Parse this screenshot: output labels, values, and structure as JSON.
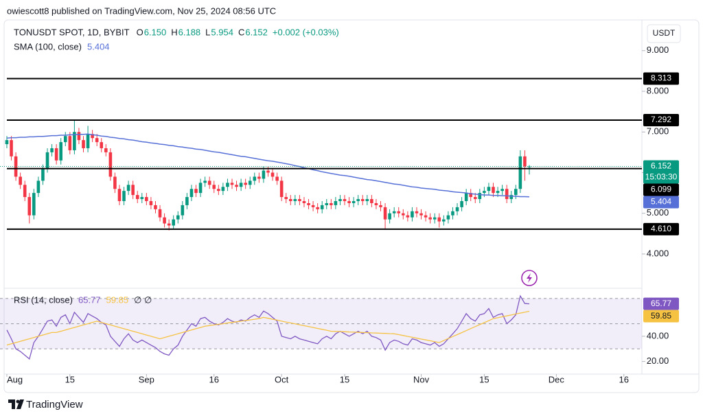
{
  "header": {
    "publisher": "owiescott8 published on TradingView.com, Nov 25, 2024 08:56 UTC"
  },
  "chart_data": [
    {
      "type": "candlestick",
      "title": "TONUSDT SPOT, 1D, BYBIT",
      "header_values": [
        {
          "key": "O",
          "label": "6.150"
        },
        {
          "key": "H",
          "label": "6.188"
        },
        {
          "key": "L",
          "label": "5.954"
        },
        {
          "key": "C",
          "label": "6.152"
        }
      ],
      "change": "+0.002 (+0.03%)",
      "currency": "USDT",
      "up_color": "#089981",
      "down_color": "#f23645",
      "xlim": [
        -1.52,
        141
      ],
      "ylim": [
        3.19,
        9.57
      ],
      "yticks": [
        {
          "value": 4,
          "label": "4.000"
        },
        {
          "value": 5,
          "label": "5.000"
        },
        {
          "value": 6,
          "label": "6.000"
        },
        {
          "value": 7,
          "label": "7.000"
        },
        {
          "value": 8,
          "label": "8.000"
        },
        {
          "value": 9,
          "label": "9.000"
        }
      ],
      "open": [
        6.7,
        6.8,
        6.4,
        5.9,
        5.7,
        5.4,
        4.95,
        5.5,
        5.8,
        6.1,
        6.5,
        6.6,
        6.3,
        6.75,
        6.9,
        6.55,
        7.0,
        6.8,
        6.6,
        6.95,
        6.85,
        6.75,
        6.6,
        6.5,
        5.9,
        5.6,
        5.3,
        5.55,
        5.7,
        5.45,
        5.35,
        5.4,
        5.3,
        5.2,
        5.1,
        4.9,
        4.75,
        4.7,
        4.85,
        4.95,
        5.2,
        5.4,
        5.6,
        5.5,
        5.75,
        5.8,
        5.7,
        5.6,
        5.55,
        5.65,
        5.75,
        5.7,
        5.65,
        5.75,
        5.7,
        5.8,
        5.9,
        5.85,
        6.05,
        6.0,
        5.9,
        5.8,
        5.4,
        5.35,
        5.3,
        5.35,
        5.3,
        5.25,
        5.2,
        5.15,
        5.1,
        5.2,
        5.25,
        5.2,
        5.3,
        5.35,
        5.3,
        5.25,
        5.3,
        5.35,
        5.3,
        5.35,
        5.25,
        5.2,
        5.15,
        4.85,
        5.0,
        5.05,
        5.0,
        4.95,
        4.9,
        5.05,
        5.0,
        4.95,
        4.9,
        4.85,
        4.9,
        4.8,
        4.85,
        4.95,
        5.05,
        5.15,
        5.3,
        5.5,
        5.4,
        5.35,
        5.5,
        5.55,
        5.65,
        5.5,
        5.55,
        5.6,
        5.35,
        5.45,
        5.6,
        6.4,
        6.15
      ],
      "high": [
        6.9,
        6.9,
        6.5,
        6.0,
        5.8,
        5.5,
        5.6,
        5.9,
        6.2,
        6.6,
        6.7,
        6.7,
        6.85,
        7.0,
        7.0,
        7.28,
        7.1,
        6.9,
        7.15,
        7.05,
        6.95,
        6.85,
        6.7,
        6.6,
        6.0,
        5.7,
        5.65,
        5.8,
        5.8,
        5.55,
        5.5,
        5.5,
        5.4,
        5.3,
        5.2,
        5.0,
        4.85,
        4.95,
        5.05,
        5.3,
        5.5,
        5.7,
        5.7,
        5.85,
        5.9,
        5.9,
        5.8,
        5.7,
        5.75,
        5.85,
        5.85,
        5.8,
        5.85,
        5.85,
        5.9,
        6.0,
        6.0,
        6.15,
        6.15,
        6.1,
        6.0,
        5.9,
        5.5,
        5.45,
        5.45,
        5.45,
        5.4,
        5.35,
        5.3,
        5.25,
        5.3,
        5.35,
        5.35,
        5.4,
        5.45,
        5.45,
        5.4,
        5.4,
        5.45,
        5.45,
        5.45,
        5.45,
        5.35,
        5.3,
        5.25,
        5.1,
        5.15,
        5.15,
        5.1,
        5.05,
        5.15,
        5.15,
        5.1,
        5.05,
        5.0,
        5.0,
        5.0,
        4.95,
        5.05,
        5.15,
        5.25,
        5.4,
        5.6,
        5.6,
        5.5,
        5.6,
        5.65,
        5.75,
        5.75,
        5.65,
        5.7,
        5.7,
        5.55,
        5.7,
        6.55,
        6.55,
        6.188
      ],
      "low": [
        6.6,
        6.3,
        5.8,
        5.6,
        5.3,
        4.75,
        4.85,
        5.4,
        5.7,
        6.0,
        6.4,
        6.2,
        6.2,
        6.65,
        6.45,
        6.45,
        6.7,
        6.5,
        6.5,
        6.75,
        6.65,
        6.5,
        6.4,
        5.8,
        5.5,
        5.2,
        5.2,
        5.45,
        5.35,
        5.25,
        5.25,
        5.2,
        5.1,
        5.0,
        4.8,
        4.65,
        4.58,
        4.6,
        4.75,
        4.85,
        5.1,
        5.3,
        5.4,
        5.4,
        5.65,
        5.6,
        5.5,
        5.45,
        5.45,
        5.55,
        5.6,
        5.55,
        5.55,
        5.6,
        5.6,
        5.7,
        5.75,
        5.75,
        5.9,
        5.8,
        5.7,
        5.3,
        5.25,
        5.2,
        5.2,
        5.2,
        5.15,
        5.1,
        5.05,
        5.0,
        5.0,
        5.1,
        5.1,
        5.1,
        5.2,
        5.2,
        5.15,
        5.15,
        5.2,
        5.2,
        5.2,
        5.15,
        5.1,
        5.05,
        4.62,
        4.75,
        4.9,
        4.9,
        4.85,
        4.8,
        4.8,
        4.9,
        4.85,
        4.8,
        4.75,
        4.75,
        4.65,
        4.7,
        4.75,
        4.85,
        4.95,
        5.05,
        5.2,
        5.3,
        5.25,
        5.25,
        5.4,
        5.45,
        5.4,
        5.4,
        5.45,
        5.25,
        5.25,
        5.35,
        5.5,
        5.8,
        5.954
      ],
      "close": [
        6.8,
        6.4,
        5.9,
        5.7,
        5.4,
        4.95,
        5.5,
        5.8,
        6.1,
        6.5,
        6.6,
        6.3,
        6.75,
        6.9,
        6.55,
        7.0,
        6.8,
        6.6,
        6.95,
        6.85,
        6.75,
        6.6,
        6.5,
        5.9,
        5.6,
        5.3,
        5.55,
        5.7,
        5.45,
        5.35,
        5.4,
        5.3,
        5.2,
        5.1,
        4.9,
        4.75,
        4.7,
        4.85,
        4.95,
        5.2,
        5.4,
        5.6,
        5.5,
        5.75,
        5.8,
        5.7,
        5.6,
        5.55,
        5.65,
        5.75,
        5.7,
        5.65,
        5.75,
        5.7,
        5.8,
        5.9,
        5.85,
        6.05,
        6.0,
        5.9,
        5.8,
        5.4,
        5.35,
        5.3,
        5.35,
        5.3,
        5.25,
        5.2,
        5.15,
        5.1,
        5.2,
        5.25,
        5.2,
        5.3,
        5.35,
        5.3,
        5.25,
        5.3,
        5.35,
        5.3,
        5.35,
        5.25,
        5.2,
        5.15,
        4.85,
        5.0,
        5.05,
        5.0,
        4.95,
        4.9,
        5.05,
        5.0,
        4.95,
        4.9,
        4.85,
        4.9,
        4.8,
        4.85,
        4.95,
        5.05,
        5.15,
        5.3,
        5.5,
        5.4,
        5.35,
        5.5,
        5.55,
        5.65,
        5.5,
        5.55,
        5.6,
        5.35,
        5.45,
        5.6,
        6.4,
        6.15,
        6.152
      ],
      "countdown": "15:03:30",
      "series": [
        {
          "name": "SMA (100, close)",
          "color": "#5670d8",
          "values": [
            6.85,
            6.86,
            6.86,
            6.87,
            6.87,
            6.88,
            6.88,
            6.89,
            6.89,
            6.9,
            6.91,
            6.91,
            6.92,
            6.92,
            6.93,
            6.93,
            6.94,
            6.94,
            6.95,
            6.93,
            6.92,
            6.9,
            6.89,
            6.87,
            6.86,
            6.84,
            6.83,
            6.81,
            6.8,
            6.78,
            6.76,
            6.75,
            6.73,
            6.72,
            6.7,
            6.69,
            6.67,
            6.66,
            6.64,
            6.63,
            6.61,
            6.6,
            6.58,
            6.57,
            6.55,
            6.53,
            6.51,
            6.5,
            6.48,
            6.46,
            6.44,
            6.42,
            6.4,
            6.39,
            6.37,
            6.35,
            6.33,
            6.31,
            6.29,
            6.28,
            6.26,
            6.24,
            6.22,
            6.2,
            6.17,
            6.15,
            6.12,
            6.1,
            6.07,
            6.05,
            6.02,
            6.0,
            5.98,
            5.96,
            5.94,
            5.93,
            5.91,
            5.89,
            5.87,
            5.85,
            5.83,
            5.82,
            5.8,
            5.78,
            5.76,
            5.74,
            5.72,
            5.71,
            5.69,
            5.67,
            5.65,
            5.64,
            5.62,
            5.61,
            5.6,
            5.59,
            5.57,
            5.56,
            5.55,
            5.53,
            5.52,
            5.51,
            5.5,
            5.48,
            5.47,
            5.46,
            5.45,
            5.45,
            5.44,
            5.44,
            5.43,
            5.43,
            5.42,
            5.42,
            5.41,
            5.41,
            5.404
          ]
        }
      ],
      "levels": {
        "color": "#000000",
        "values": [
          8.313,
          7.292,
          6.099,
          4.61
        ],
        "value_labels": [
          "8.313",
          "7.292",
          "6.099",
          "4.610"
        ]
      }
    },
    {
      "type": "line",
      "title": "RSI (14, close)",
      "extra": "∅ ∅",
      "xlim": [
        -1.52,
        141
      ],
      "xticks": [
        {
          "value": 0,
          "label": "Aug"
        },
        {
          "value": 14,
          "label": "15"
        },
        {
          "value": 31,
          "label": "Sep"
        },
        {
          "value": 46,
          "label": "16"
        },
        {
          "value": 61,
          "label": "Oct"
        },
        {
          "value": 75,
          "label": "15"
        },
        {
          "value": 92,
          "label": "Nov"
        },
        {
          "value": 106,
          "label": "15"
        },
        {
          "value": 122,
          "label": "Dec"
        },
        {
          "value": 137,
          "label": "16"
        }
      ],
      "ylim": [
        10,
        77
      ],
      "yticks": [
        {
          "value": 20,
          "label": "20.00"
        },
        {
          "value": 40,
          "label": "40.00"
        }
      ],
      "bands": [
        30,
        50,
        70
      ],
      "band_fill": "rgba(126,87,194,0.1)",
      "series": [
        {
          "color": "#7e57c2",
          "values": [
            45,
            38,
            30,
            28,
            25,
            22,
            35,
            40,
            46,
            52,
            53,
            48,
            55,
            57,
            50,
            59,
            55,
            51,
            58,
            56,
            54,
            51,
            49,
            40,
            36,
            32,
            38,
            42,
            37,
            35,
            37,
            35,
            33,
            31,
            28,
            26,
            25,
            30,
            33,
            40,
            45,
            50,
            48,
            54,
            55,
            52,
            50,
            49,
            51,
            54,
            52,
            51,
            53,
            52,
            55,
            57,
            55,
            60,
            58,
            55,
            52,
            40,
            39,
            38,
            40,
            38,
            37,
            36,
            35,
            34,
            38,
            40,
            38,
            42,
            44,
            42,
            40,
            42,
            44,
            42,
            44,
            40,
            39,
            37,
            29,
            35,
            37,
            36,
            34,
            33,
            38,
            37,
            35,
            34,
            33,
            35,
            32,
            34,
            38,
            42,
            46,
            52,
            58,
            54,
            52,
            57,
            58,
            62,
            55,
            57,
            58,
            50,
            53,
            57,
            72,
            66,
            65.77
          ]
        },
        {
          "color": "#f5c242",
          "values": [
            33,
            34,
            35,
            36,
            37,
            38,
            39,
            40,
            41,
            42,
            43,
            43,
            44,
            45,
            46,
            47,
            48,
            49,
            50,
            51,
            52,
            51,
            50,
            49,
            48,
            47,
            46,
            45,
            44,
            43,
            42,
            41,
            40,
            39,
            38,
            39,
            40,
            41,
            42,
            43,
            44,
            45,
            46,
            47,
            48,
            48.5,
            49,
            49.5,
            50,
            50.5,
            51,
            51.5,
            52,
            52.5,
            53,
            53.5,
            54,
            55,
            54.3,
            53.5,
            52.8,
            52,
            51.3,
            50.6,
            49.9,
            49.1,
            48.4,
            47.7,
            47,
            46.2,
            45.5,
            44.8,
            44,
            43.9,
            43.7,
            43.6,
            43.4,
            43.3,
            43.1,
            43,
            42.9,
            42.7,
            42.6,
            42.4,
            42.3,
            42.1,
            42,
            41.3,
            40.6,
            39.9,
            39.2,
            38.5,
            37.8,
            37.1,
            36.4,
            35.7,
            35,
            36.6,
            38.2,
            39.8,
            41.3,
            42.9,
            44.5,
            46.1,
            47.7,
            49.3,
            50.8,
            52.4,
            54,
            54.7,
            55.5,
            56.2,
            56.9,
            57.7,
            58.4,
            59.1,
            59.85
          ]
        }
      ]
    }
  ],
  "footer": {
    "brand": "TradingView"
  }
}
